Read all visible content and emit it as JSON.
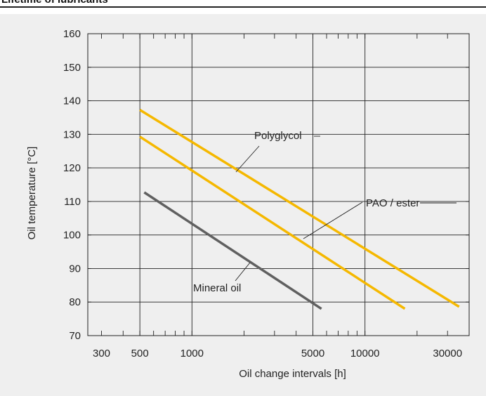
{
  "page_title": "Lifetime of lubricants",
  "chart_data": {
    "type": "line",
    "xlabel": "Oil change intervals [h]",
    "ylabel": "Oil temperature  [°C]",
    "x_scale": "log",
    "xlim": [
      250,
      40000
    ],
    "ylim": [
      70,
      160
    ],
    "x_ticks": [
      300,
      500,
      1000,
      5000,
      10000,
      30000
    ],
    "y_ticks": [
      70,
      80,
      90,
      100,
      110,
      120,
      130,
      140,
      150,
      160
    ],
    "grid": true,
    "series": [
      {
        "name": "Polyglycol",
        "color": "#f5b800",
        "x": [
          500,
          35000
        ],
        "y": [
          137.3,
          78.6
        ]
      },
      {
        "name": "PAO / ester",
        "color": "#f5b800",
        "x": [
          500,
          17000
        ],
        "y": [
          129.3,
          78.0
        ]
      },
      {
        "name": "Mineral oil",
        "color": "#606060",
        "x": [
          530,
          5600
        ],
        "y": [
          112.7,
          78.0
        ]
      }
    ]
  }
}
